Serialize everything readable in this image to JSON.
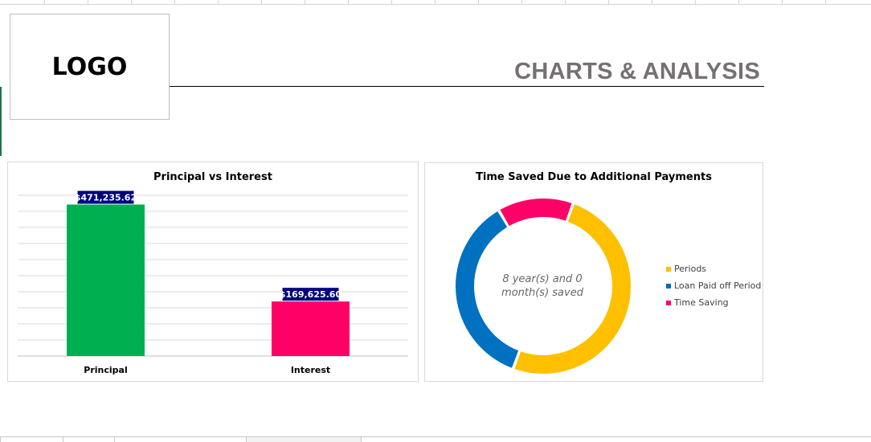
{
  "logo_text": "LOGO",
  "page_title": "CHARTS & ANALYSIS",
  "chart_data": [
    {
      "type": "bar",
      "title": "Principal vs Interest",
      "categories": [
        "Principal",
        "Interest"
      ],
      "values": [
        471235.62,
        169625.6
      ],
      "data_labels": [
        "$471,235.62",
        "$169,625.60"
      ],
      "colors": [
        "#00b050",
        "#ff0066"
      ],
      "ylim": [
        0,
        500000
      ],
      "grid": true,
      "xlabel": "",
      "ylabel": ""
    },
    {
      "type": "pie",
      "title": "Time Saved Due to Additional Payments",
      "series": [
        {
          "name": "Periods",
          "value": 50,
          "color": "#ffc000"
        },
        {
          "name": "Loan Paid off Period",
          "value": 36,
          "color": "#0070c0"
        },
        {
          "name": "Time Saving",
          "value": 14,
          "color": "#ff0066"
        }
      ],
      "center_label": "8 year(s) and 0 month(s) saved",
      "legend": "right"
    }
  ]
}
